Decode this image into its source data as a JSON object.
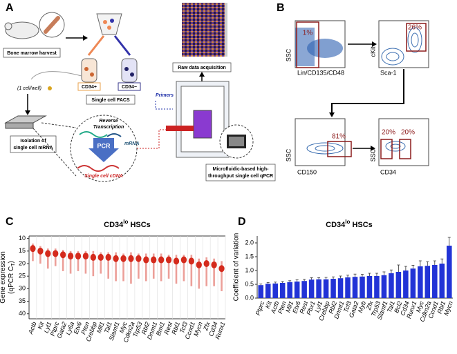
{
  "panel_labels": [
    "A",
    "B",
    "C",
    "D"
  ],
  "panel_a": {
    "harvest": "Bone marrow harvest",
    "one_cell": "(1 cell/well)",
    "isolation": [
      "Isolation of",
      "single cell mRNA"
    ],
    "cd34_pos": "CD34+",
    "cd34_neg": "CD34−",
    "facs": "Single cell FACS",
    "rt": [
      "Reverse",
      "Transcription"
    ],
    "mrna": "mRNA",
    "pcr": "PCR",
    "cdna": "Single cell cDNA",
    "primers": "Primers",
    "raw": "Raw data acquisition",
    "qpcr": [
      "Microfluidic-based high-",
      "throughput single cell qPCR"
    ]
  },
  "panel_b": {
    "plots": [
      {
        "y_label": "SSC",
        "x_label": "Lin/CD135/CD48",
        "gates": [
          "1%"
        ]
      },
      {
        "y_label": "cKit",
        "x_label": "Sca-1",
        "gates": [
          "26%"
        ]
      },
      {
        "y_label": "SSC",
        "x_label": "CD150",
        "gates": [
          "81%"
        ]
      },
      {
        "y_label": "SSC",
        "x_label": "CD34",
        "gates": [
          "20%",
          "20%"
        ]
      }
    ]
  },
  "chart_data": [
    {
      "type": "strip",
      "title": [
        "CD34",
        "lo",
        " HSCs"
      ],
      "y_label": [
        "Gene expression",
        "(qPCR C",
        "T",
        ")"
      ],
      "categories": [
        "Actb",
        "Kit",
        "Lyl1",
        "Ptprc",
        "Gata2",
        "Ly6a",
        "Etv6",
        "Pten",
        "Crebbp",
        "Mll1",
        "Tal1",
        "Slamf1",
        "Myc",
        "Cdkn2a",
        "Trp53",
        "Rbl2",
        "Dnmt1",
        "Bmi1",
        "Rest",
        "Rbl1",
        "Tcf3",
        "Ccnd1",
        "Mycn",
        "Zfx",
        "Cd34",
        "Runx1"
      ],
      "values": [
        14,
        15,
        16,
        16,
        16.5,
        17,
        17,
        17,
        17.5,
        17.5,
        17.5,
        18,
        18,
        18,
        18,
        18.5,
        18.5,
        18.5,
        18.5,
        19,
        18.5,
        19,
        20.5,
        20,
        20.5,
        22
      ],
      "highs": [
        12,
        13,
        14,
        14,
        14.5,
        15,
        15,
        15,
        15,
        15.5,
        15.5,
        15.5,
        16,
        15.5,
        16,
        16,
        16,
        16,
        16.5,
        16.5,
        16.5,
        16.5,
        18,
        17.5,
        18,
        19
      ],
      "lows": [
        19,
        20,
        22,
        21,
        23,
        24,
        23,
        24,
        25,
        24,
        26,
        27,
        27,
        28,
        26,
        27,
        26,
        27,
        26,
        28,
        27,
        29,
        30,
        29,
        29,
        31
      ],
      "color": "#d42a1c",
      "ylim": [
        9,
        42
      ],
      "yticks": [
        10,
        15,
        20,
        25,
        30,
        35,
        40
      ],
      "invert_y": true
    },
    {
      "type": "bar",
      "title": [
        "CD34",
        "lo",
        " HSCs"
      ],
      "y_label": "Coefficient of variation",
      "categories": [
        "Ptprc",
        "Kit",
        "Actb",
        "Pten",
        "Mll1",
        "Etv6",
        "Rest",
        "Pbx1",
        "Lyl1",
        "Crebbp",
        "Rbl2",
        "Dnmt1",
        "Tcf3",
        "Gata2",
        "Myb",
        "Zfx",
        "Trp53",
        "Slamf1",
        "Tal1",
        "Bcl2",
        "Cd34",
        "Runx1",
        "Myc",
        "Cdkn2a",
        "Ccnd1",
        "Rbl1",
        "Mycn"
      ],
      "values": [
        0.47,
        0.52,
        0.53,
        0.55,
        0.58,
        0.6,
        0.62,
        0.67,
        0.68,
        0.68,
        0.7,
        0.72,
        0.75,
        0.77,
        0.78,
        0.8,
        0.8,
        0.83,
        0.9,
        0.95,
        1.0,
        1.07,
        1.15,
        1.17,
        1.2,
        1.25,
        1.9
      ],
      "errors": [
        0.04,
        0.04,
        0.05,
        0.05,
        0.05,
        0.06,
        0.06,
        0.07,
        0.06,
        0.07,
        0.07,
        0.08,
        0.08,
        0.1,
        0.08,
        0.1,
        0.1,
        0.12,
        0.12,
        0.25,
        0.15,
        0.12,
        0.2,
        0.15,
        0.15,
        0.17,
        0.3
      ],
      "color": "#2233d6",
      "ylim": [
        0,
        2.25
      ],
      "yticks": [
        {
          "value": 0,
          "label": "0.0"
        },
        {
          "value": 0.5,
          "label": "0.5"
        },
        {
          "value": 1,
          "label": "1.0"
        },
        {
          "value": 1.5,
          "label": "1.5"
        },
        {
          "value": 2,
          "label": "2.0"
        }
      ]
    }
  ]
}
